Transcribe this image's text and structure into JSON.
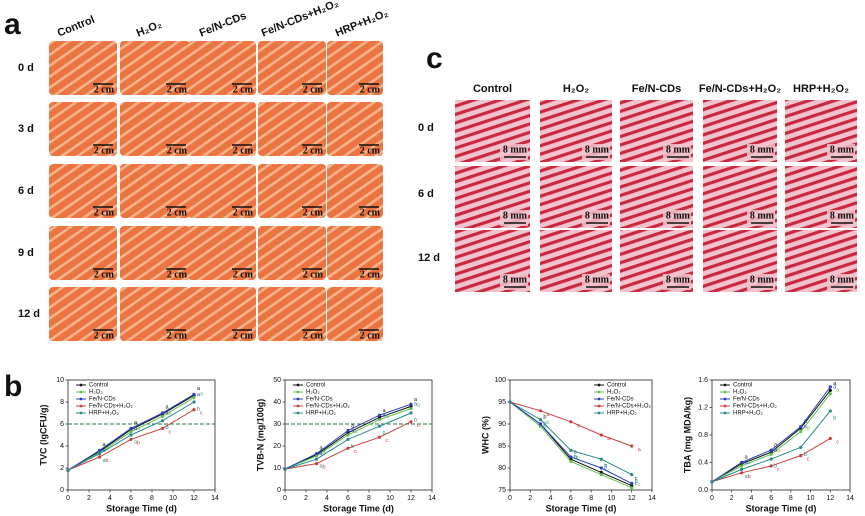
{
  "panel_labels": [
    "a",
    "b",
    "c"
  ],
  "panel_a": {
    "columns": [
      "Control",
      "H₂O₂",
      "Fe/N-CDs",
      "Fe/N-CDs+H₂O₂",
      "HRP+H₂O₂"
    ],
    "rows": [
      "0 d",
      "3 d",
      "6 d",
      "9 d",
      "12 d"
    ],
    "scale_label": "2 cm"
  },
  "panel_c": {
    "columns": [
      "Control",
      "H₂O₂",
      "Fe/N-CDs",
      "Fe/N-CDs+H₂O₂",
      "HRP+H₂O₂"
    ],
    "rows": [
      "0 d",
      "6 d",
      "12 d"
    ],
    "scale_label": "8 mm"
  },
  "chart_data": [
    {
      "type": "line",
      "xlabel": "Storage Time (d)",
      "ylabel": "TVC (lgCFU/g)",
      "x": [
        0,
        3,
        6,
        9,
        12
      ],
      "xlim": [
        0,
        14
      ],
      "xticks": [
        0,
        2,
        4,
        6,
        8,
        10,
        12,
        14
      ],
      "ylim": [
        0,
        10
      ],
      "yticks": [
        0,
        2,
        4,
        6,
        8,
        10
      ],
      "threshold_line": 6,
      "legend": "upper-left",
      "series": [
        {
          "name": "Control",
          "color": "#111111",
          "values": [
            1.8,
            3.5,
            5.5,
            6.9,
            8.6
          ],
          "letters": [
            null,
            "a",
            "a",
            "a",
            "a"
          ]
        },
        {
          "name": "H₂O₂",
          "color": "#5cc24a",
          "values": [
            1.8,
            3.4,
            5.3,
            6.7,
            8.4
          ],
          "letters": [
            null,
            "a",
            "a",
            "a",
            "a"
          ]
        },
        {
          "name": "Fe/N-CDs",
          "color": "#2b3fbf",
          "values": [
            1.8,
            3.6,
            5.6,
            7.0,
            8.7
          ],
          "letters": [
            null,
            "a",
            "a",
            "a",
            "a"
          ]
        },
        {
          "name": "Fe/N-CDs+H₂O₂",
          "color": "#c8403c",
          "values": [
            1.8,
            3.0,
            4.6,
            5.6,
            7.3
          ],
          "letters": [
            null,
            "b",
            "b",
            "c",
            "c"
          ]
        },
        {
          "name": "HRP+H₂O₂",
          "color": "#2a8a8a",
          "values": [
            1.8,
            3.3,
            5.0,
            6.3,
            8.0
          ],
          "letters": [
            null,
            "a",
            "a",
            "b",
            "b"
          ]
        }
      ]
    },
    {
      "type": "line",
      "xlabel": "Storage Time (d)",
      "ylabel": "TVB-N (mg/100g)",
      "x": [
        0,
        3,
        6,
        9,
        12
      ],
      "xlim": [
        0,
        14
      ],
      "xticks": [
        0,
        2,
        4,
        6,
        8,
        10,
        12,
        14
      ],
      "ylim": [
        0,
        50
      ],
      "yticks": [
        0,
        10,
        20,
        30,
        40,
        50
      ],
      "threshold_line": 30,
      "legend": "upper-left",
      "series": [
        {
          "name": "Control",
          "color": "#111111",
          "values": [
            9.5,
            16,
            26,
            33,
            38
          ],
          "letters": [
            null,
            "a",
            "a",
            "a",
            "a"
          ]
        },
        {
          "name": "H₂O₂",
          "color": "#5cc24a",
          "values": [
            9.5,
            15.5,
            25,
            32,
            37
          ],
          "letters": [
            null,
            "a",
            "a",
            "a",
            "a"
          ]
        },
        {
          "name": "Fe/N-CDs",
          "color": "#2b3fbf",
          "values": [
            9.5,
            16.5,
            27,
            34,
            39
          ],
          "letters": [
            null,
            "a",
            "a",
            "a",
            "a"
          ]
        },
        {
          "name": "Fe/N-CDs+H₂O₂",
          "color": "#c8403c",
          "values": [
            9.5,
            12,
            19,
            24,
            31
          ],
          "letters": [
            null,
            "b",
            "c",
            "c",
            "c"
          ]
        },
        {
          "name": "HRP+H₂O₂",
          "color": "#2a8a8a",
          "values": [
            9.5,
            14,
            23,
            29,
            35
          ],
          "letters": [
            null,
            "a",
            "b",
            "b",
            "b"
          ]
        }
      ]
    },
    {
      "type": "line",
      "xlabel": "Storage Time (d)",
      "ylabel": "WHC (%)",
      "x": [
        0,
        3,
        6,
        9,
        12
      ],
      "xlim": [
        0,
        14
      ],
      "xticks": [
        0,
        2,
        4,
        6,
        8,
        10,
        12,
        14
      ],
      "ylim": [
        75,
        100
      ],
      "yticks": [
        75,
        80,
        85,
        90,
        95,
        100
      ],
      "legend": "upper-right",
      "series": [
        {
          "name": "Control",
          "color": "#111111",
          "values": [
            95,
            90,
            82,
            79,
            76
          ],
          "letters": [
            null,
            "b",
            "c",
            "c",
            "c"
          ]
        },
        {
          "name": "H₂O₂",
          "color": "#5cc24a",
          "values": [
            95,
            89.5,
            81.5,
            78.5,
            75.5
          ],
          "letters": [
            null,
            "b",
            "b",
            "c",
            "c"
          ]
        },
        {
          "name": "Fe/N-CDs",
          "color": "#2b3fbf",
          "values": [
            95,
            90,
            82.5,
            80,
            76.5
          ],
          "letters": [
            null,
            "b",
            "b",
            "c",
            "c"
          ]
        },
        {
          "name": "Fe/N-CDs+H₂O₂",
          "color": "#c8403c",
          "values": [
            95,
            93,
            90.5,
            87.5,
            85
          ],
          "letters": [
            null,
            "a",
            "a",
            "a",
            "a"
          ]
        },
        {
          "name": "HRP+H₂O₂",
          "color": "#2a8a8a",
          "values": [
            95,
            91,
            84,
            82,
            78.5
          ],
          "letters": [
            null,
            "b",
            "b",
            "b",
            "b"
          ]
        }
      ]
    },
    {
      "type": "line",
      "xlabel": "Storage Time (d)",
      "ylabel": "TBA (mg MDA/kg)",
      "x": [
        0,
        3,
        6,
        9,
        12
      ],
      "xlim": [
        0,
        14
      ],
      "xticks": [
        0,
        2,
        4,
        6,
        8,
        10,
        12,
        14
      ],
      "ylim": [
        0,
        1.6
      ],
      "yticks": [
        {
          "value": 0,
          "label": "0.0"
        },
        0.4,
        0.8,
        1.2,
        1.6
      ],
      "legend": "upper-left",
      "series": [
        {
          "name": "Control",
          "color": "#111111",
          "values": [
            0.12,
            0.38,
            0.55,
            0.9,
            1.45
          ],
          "letters": [
            null,
            "a",
            "a",
            "a",
            "a"
          ]
        },
        {
          "name": "H₂O₂",
          "color": "#5cc24a",
          "values": [
            0.12,
            0.35,
            0.52,
            0.85,
            1.4
          ],
          "letters": [
            null,
            "a",
            "a",
            "a",
            "a"
          ]
        },
        {
          "name": "Fe/N-CDs",
          "color": "#2b3fbf",
          "values": [
            0.12,
            0.4,
            0.58,
            0.92,
            1.5
          ],
          "letters": [
            null,
            "a",
            "a",
            "a",
            "a"
          ]
        },
        {
          "name": "Fe/N-CDs+H₂O₂",
          "color": "#c8403c",
          "values": [
            0.12,
            0.25,
            0.35,
            0.5,
            0.75
          ],
          "letters": [
            null,
            "b",
            "c",
            "c",
            "c"
          ]
        },
        {
          "name": "HRP+H₂O₂",
          "color": "#2a8a8a",
          "values": [
            0.12,
            0.3,
            0.45,
            0.62,
            1.15
          ],
          "letters": [
            null,
            "a",
            "b",
            "b",
            "b"
          ]
        }
      ]
    }
  ]
}
